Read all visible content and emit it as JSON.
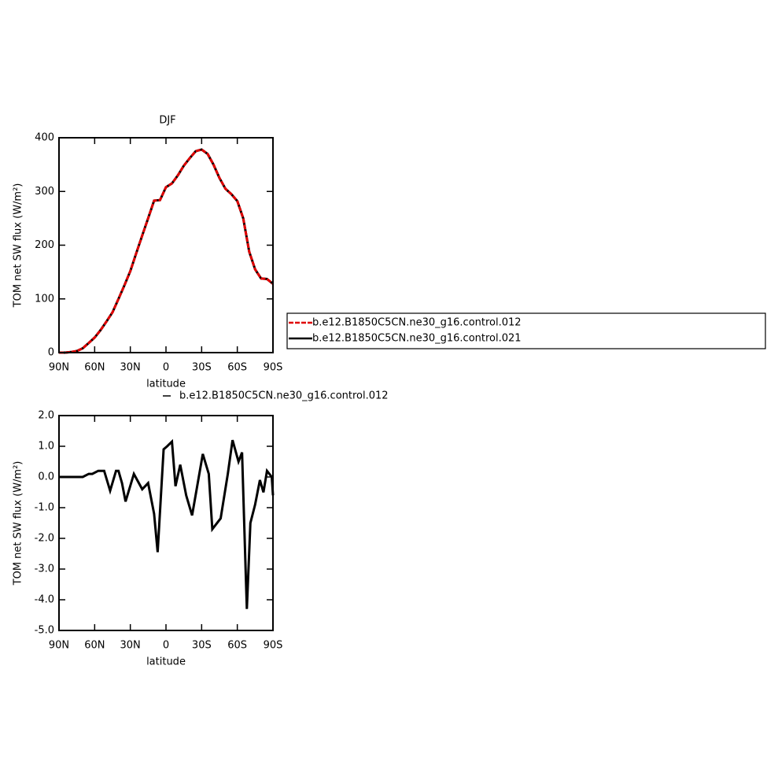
{
  "chart_data": [
    {
      "type": "line",
      "title": "DJF",
      "x_label": "latitude",
      "y_label": "TOM net SW flux (W/m²)",
      "x": [
        90,
        85,
        80,
        75,
        70,
        65,
        60,
        55,
        50,
        45,
        40,
        35,
        30,
        25,
        20,
        15,
        10,
        5,
        0,
        -5,
        -10,
        -15,
        -20,
        -25,
        -30,
        -35,
        -40,
        -45,
        -50,
        -55,
        -60,
        -65,
        -70,
        -75,
        -80,
        -85,
        -90
      ],
      "series": [
        {
          "name": "b.e12.B1850C5CN.ne30_g16.control.012",
          "color": "#e00000",
          "dashed": true,
          "values": [
            0,
            0,
            1,
            3,
            8,
            18,
            28,
            42,
            58,
            75,
            100,
            125,
            152,
            185,
            218,
            250,
            283,
            284,
            308,
            315,
            330,
            348,
            362,
            375,
            378,
            370,
            350,
            325,
            305,
            295,
            282,
            250,
            188,
            155,
            138,
            137,
            128
          ]
        },
        {
          "name": "b.e12.B1850C5CN.ne30_g16.control.021",
          "color": "#000000",
          "dashed": false,
          "values": [
            0,
            0,
            1,
            3,
            8,
            18,
            28,
            42,
            58,
            75,
            100,
            125,
            152,
            185,
            218,
            250,
            283,
            284,
            308,
            315,
            330,
            348,
            362,
            375,
            378,
            370,
            350,
            325,
            305,
            295,
            282,
            250,
            188,
            155,
            138,
            137,
            128
          ]
        }
      ],
      "xlim": [
        90,
        -90
      ],
      "xticks": [
        {
          "value": 90,
          "label": "90N"
        },
        {
          "value": 60,
          "label": "60N"
        },
        {
          "value": 30,
          "label": "30N"
        },
        0,
        {
          "value": -30,
          "label": "30S"
        },
        {
          "value": -60,
          "label": "60S"
        },
        {
          "value": -90,
          "label": "90S"
        }
      ],
      "ylim": [
        0,
        400
      ],
      "yticks": [
        0,
        100,
        200,
        300,
        400
      ],
      "legend": "right"
    },
    {
      "type": "line",
      "x_label": "latitude",
      "y_label": "TOM net SW flux (W/m²)",
      "x": [
        90,
        80,
        70,
        65,
        62,
        57,
        52,
        47,
        42,
        40,
        37,
        34,
        27,
        20,
        15,
        10,
        7,
        2,
        -1,
        -5,
        -8,
        -12,
        -17,
        -22,
        -31,
        -36,
        -39,
        -46,
        -52,
        -56,
        -61,
        -64,
        -67,
        -68,
        -71,
        -75,
        -79,
        -82,
        -85,
        -89,
        -90
      ],
      "series": [
        {
          "name": "b.e12.B1850C5CN.ne30_g16.control.012",
          "color": "#000000",
          "dashed": false,
          "values": [
            0,
            0,
            0,
            0.1,
            0.1,
            0.2,
            0.2,
            -0.45,
            0.2,
            0.2,
            -0.2,
            -0.8,
            0.1,
            -0.4,
            -0.2,
            -1.2,
            -2.45,
            0.9,
            1.0,
            1.15,
            -0.3,
            0.4,
            -0.6,
            -1.25,
            0.75,
            0.1,
            -1.7,
            -1.35,
            0.1,
            1.2,
            0.5,
            0.8,
            -3.0,
            -4.3,
            -1.5,
            -0.9,
            -0.1,
            -0.5,
            0.2,
            0,
            -0.6
          ]
        }
      ],
      "xlim": [
        90,
        -90
      ],
      "xticks": [
        {
          "value": 90,
          "label": "90N"
        },
        {
          "value": 60,
          "label": "60N"
        },
        {
          "value": 30,
          "label": "30N"
        },
        0,
        {
          "value": -30,
          "label": "30S"
        },
        {
          "value": -60,
          "label": "60S"
        },
        {
          "value": -90,
          "label": "90S"
        }
      ],
      "ylim": [
        -5,
        2
      ],
      "yticks": [
        {
          "value": -5,
          "label": "-5.0"
        },
        {
          "value": -4,
          "label": "-4.0"
        },
        {
          "value": -3,
          "label": "-3.0"
        },
        {
          "value": -2,
          "label": "-2.0"
        },
        {
          "value": -1,
          "label": "-1.0"
        },
        {
          "value": 0,
          "label": "0.0"
        },
        {
          "value": 1,
          "label": "1.0"
        },
        {
          "value": 2,
          "label": "2.0"
        }
      ],
      "legend": "top"
    }
  ]
}
